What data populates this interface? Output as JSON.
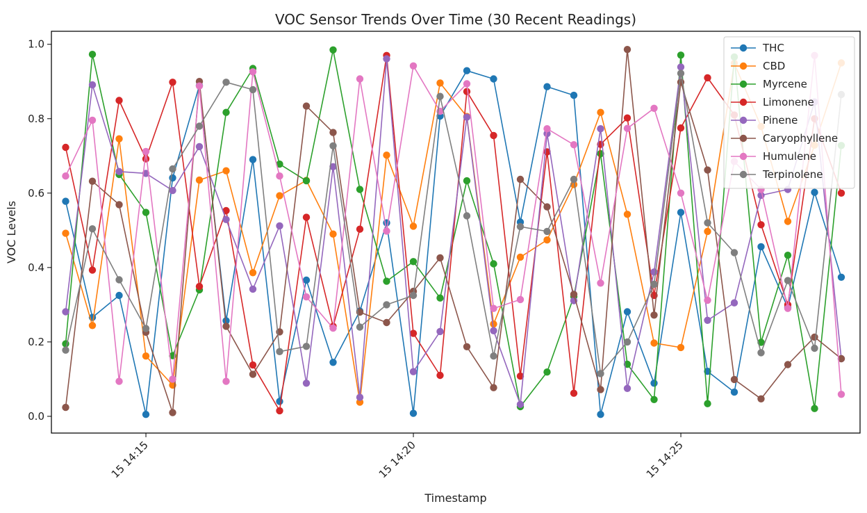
{
  "chart_data": {
    "type": "line",
    "title": "VOC Sensor Trends Over Time (30 Recent Readings)",
    "xlabel": "Timestamp",
    "ylabel": "VOC Levels",
    "x": [
      "14:13:30",
      "14:14:00",
      "14:14:30",
      "14:15:00",
      "14:15:30",
      "14:16:00",
      "14:16:30",
      "14:17:00",
      "14:17:30",
      "14:18:00",
      "14:18:30",
      "14:19:00",
      "14:19:30",
      "14:20:00",
      "14:20:30",
      "14:21:00",
      "14:21:30",
      "14:22:00",
      "14:22:30",
      "14:23:00",
      "14:23:30",
      "14:24:00",
      "14:24:30",
      "14:25:00",
      "14:25:30",
      "14:26:00",
      "14:26:30",
      "14:27:00",
      "14:27:30",
      "14:28:00"
    ],
    "x_ticks": [
      "15 14:15",
      "15 14:20",
      "15 14:25"
    ],
    "x_tick_positions": [
      "14:15:00",
      "14:20:00",
      "14:25:00"
    ],
    "y_ticks": [
      "0.0",
      "0.2",
      "0.4",
      "0.6",
      "0.8",
      "1.0"
    ],
    "ylim": [
      -0.045,
      1.035
    ],
    "xlim": [
      "14:13:14",
      "14:28:21"
    ],
    "grid": false,
    "legend_position": "top-right",
    "series": [
      {
        "name": "THC",
        "color": "#1f77b4",
        "values": [
          0.578,
          0.266,
          0.325,
          0.005,
          0.641,
          0.889,
          0.257,
          0.69,
          0.04,
          0.366,
          0.145,
          0.283,
          0.52,
          0.008,
          0.807,
          0.929,
          0.907,
          0.522,
          0.886,
          0.863,
          0.005,
          0.281,
          0.089,
          0.548,
          0.121,
          0.065,
          0.456,
          0.292,
          0.602,
          0.374
        ]
      },
      {
        "name": "CBD",
        "color": "#ff7f0e",
        "values": [
          0.492,
          0.244,
          0.746,
          0.162,
          0.084,
          0.635,
          0.66,
          0.386,
          0.593,
          0.634,
          0.49,
          0.038,
          0.702,
          0.511,
          0.896,
          0.806,
          0.248,
          0.428,
          0.474,
          0.623,
          0.817,
          0.543,
          0.197,
          0.185,
          0.497,
          0.949,
          0.779,
          0.524,
          0.729,
          0.95
        ]
      },
      {
        "name": "Myrcene",
        "color": "#2ca02c",
        "values": [
          0.195,
          0.973,
          0.65,
          0.548,
          0.163,
          0.34,
          0.817,
          0.935,
          0.678,
          0.633,
          0.985,
          0.61,
          0.363,
          0.416,
          0.318,
          0.633,
          0.41,
          0.026,
          0.119,
          0.322,
          0.706,
          0.14,
          0.045,
          0.971,
          0.034,
          0.966,
          0.199,
          0.433,
          0.021,
          0.728
        ]
      },
      {
        "name": "Limonene",
        "color": "#d62728",
        "values": [
          0.723,
          0.393,
          0.849,
          0.692,
          0.898,
          0.349,
          0.553,
          0.138,
          0.015,
          0.535,
          0.242,
          0.503,
          0.97,
          0.223,
          0.11,
          0.873,
          0.755,
          0.108,
          0.711,
          0.062,
          0.731,
          0.802,
          0.325,
          0.775,
          0.91,
          0.81,
          0.515,
          0.3,
          0.8,
          0.6
        ]
      },
      {
        "name": "Pinene",
        "color": "#9467bd",
        "values": [
          0.281,
          0.891,
          0.658,
          0.653,
          0.607,
          0.725,
          0.529,
          0.342,
          0.512,
          0.089,
          0.671,
          0.051,
          0.961,
          0.12,
          0.228,
          0.804,
          0.23,
          0.032,
          0.76,
          0.311,
          0.773,
          0.075,
          0.388,
          0.939,
          0.258,
          0.305,
          0.594,
          0.61,
          0.845,
          0.155
        ]
      },
      {
        "name": "Caryophyllene",
        "color": "#8c564b",
        "values": [
          0.024,
          0.632,
          0.569,
          0.226,
          0.01,
          0.9,
          0.242,
          0.113,
          0.227,
          0.834,
          0.763,
          0.28,
          0.252,
          0.336,
          0.426,
          0.187,
          0.077,
          0.637,
          0.563,
          0.328,
          0.072,
          0.986,
          0.272,
          0.898,
          0.662,
          0.099,
          0.047,
          0.139,
          0.213,
          0.155
        ]
      },
      {
        "name": "Humulene",
        "color": "#e377c2",
        "values": [
          0.646,
          0.796,
          0.094,
          0.712,
          0.1,
          0.888,
          0.094,
          0.926,
          0.646,
          0.321,
          0.237,
          0.907,
          0.498,
          0.942,
          0.82,
          0.894,
          0.29,
          0.314,
          0.773,
          0.73,
          0.358,
          0.774,
          0.828,
          0.6,
          0.312,
          0.685,
          0.61,
          0.29,
          0.97,
          0.059
        ]
      },
      {
        "name": "Terpinolene",
        "color": "#7f7f7f",
        "values": [
          0.178,
          0.504,
          0.367,
          0.236,
          0.665,
          0.78,
          0.898,
          0.878,
          0.174,
          0.188,
          0.727,
          0.24,
          0.3,
          0.325,
          0.86,
          0.539,
          0.162,
          0.51,
          0.497,
          0.637,
          0.115,
          0.2,
          0.355,
          0.922,
          0.52,
          0.44,
          0.171,
          0.365,
          0.183,
          0.865
        ]
      }
    ]
  }
}
